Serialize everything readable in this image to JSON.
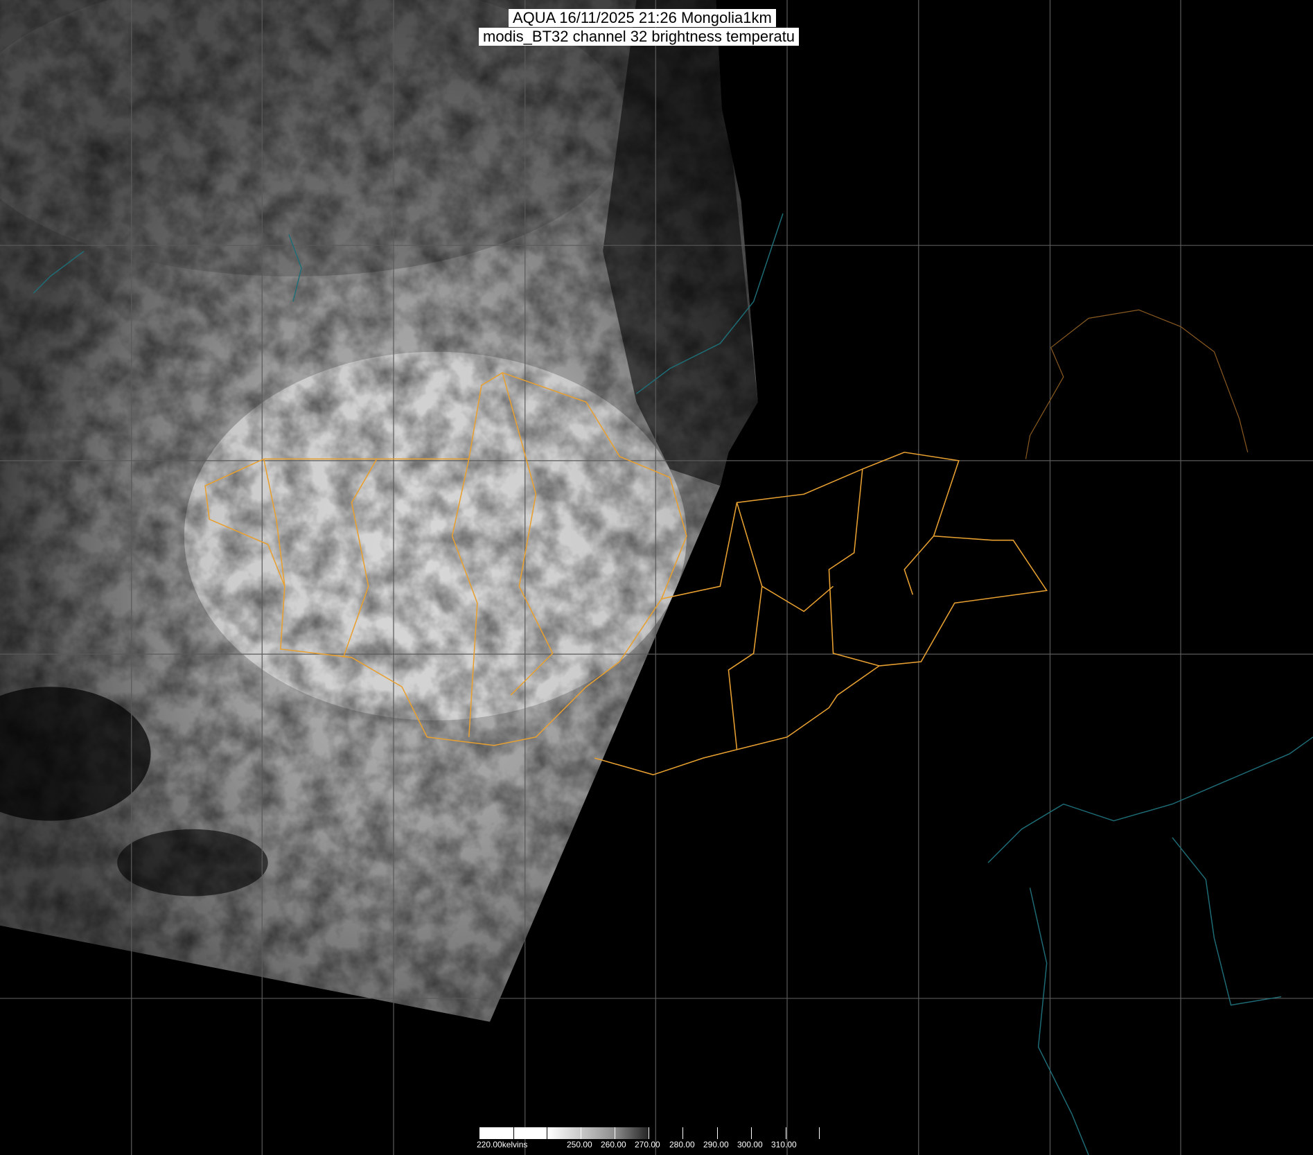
{
  "title": {
    "line1": "AQUA 16/11/2025 21:26 Mongolia1km",
    "line2": "modis_BT32 channel 32 brightness temperatu"
  },
  "colorbar": {
    "unit_label": "220.00kelvins",
    "tick_labels": [
      "250.00",
      "260.00",
      "270.00",
      "280.00",
      "290.00",
      "300.00",
      "310.00"
    ],
    "range_kelvin": [
      220,
      320
    ],
    "colormap": "white (cold) to black (warm), grayscale"
  },
  "colors": {
    "background": "#000000",
    "admin_borders": "#e8a030",
    "coastlines_rivers": "#1e6e78",
    "graticule": "#5a5a5a"
  }
}
